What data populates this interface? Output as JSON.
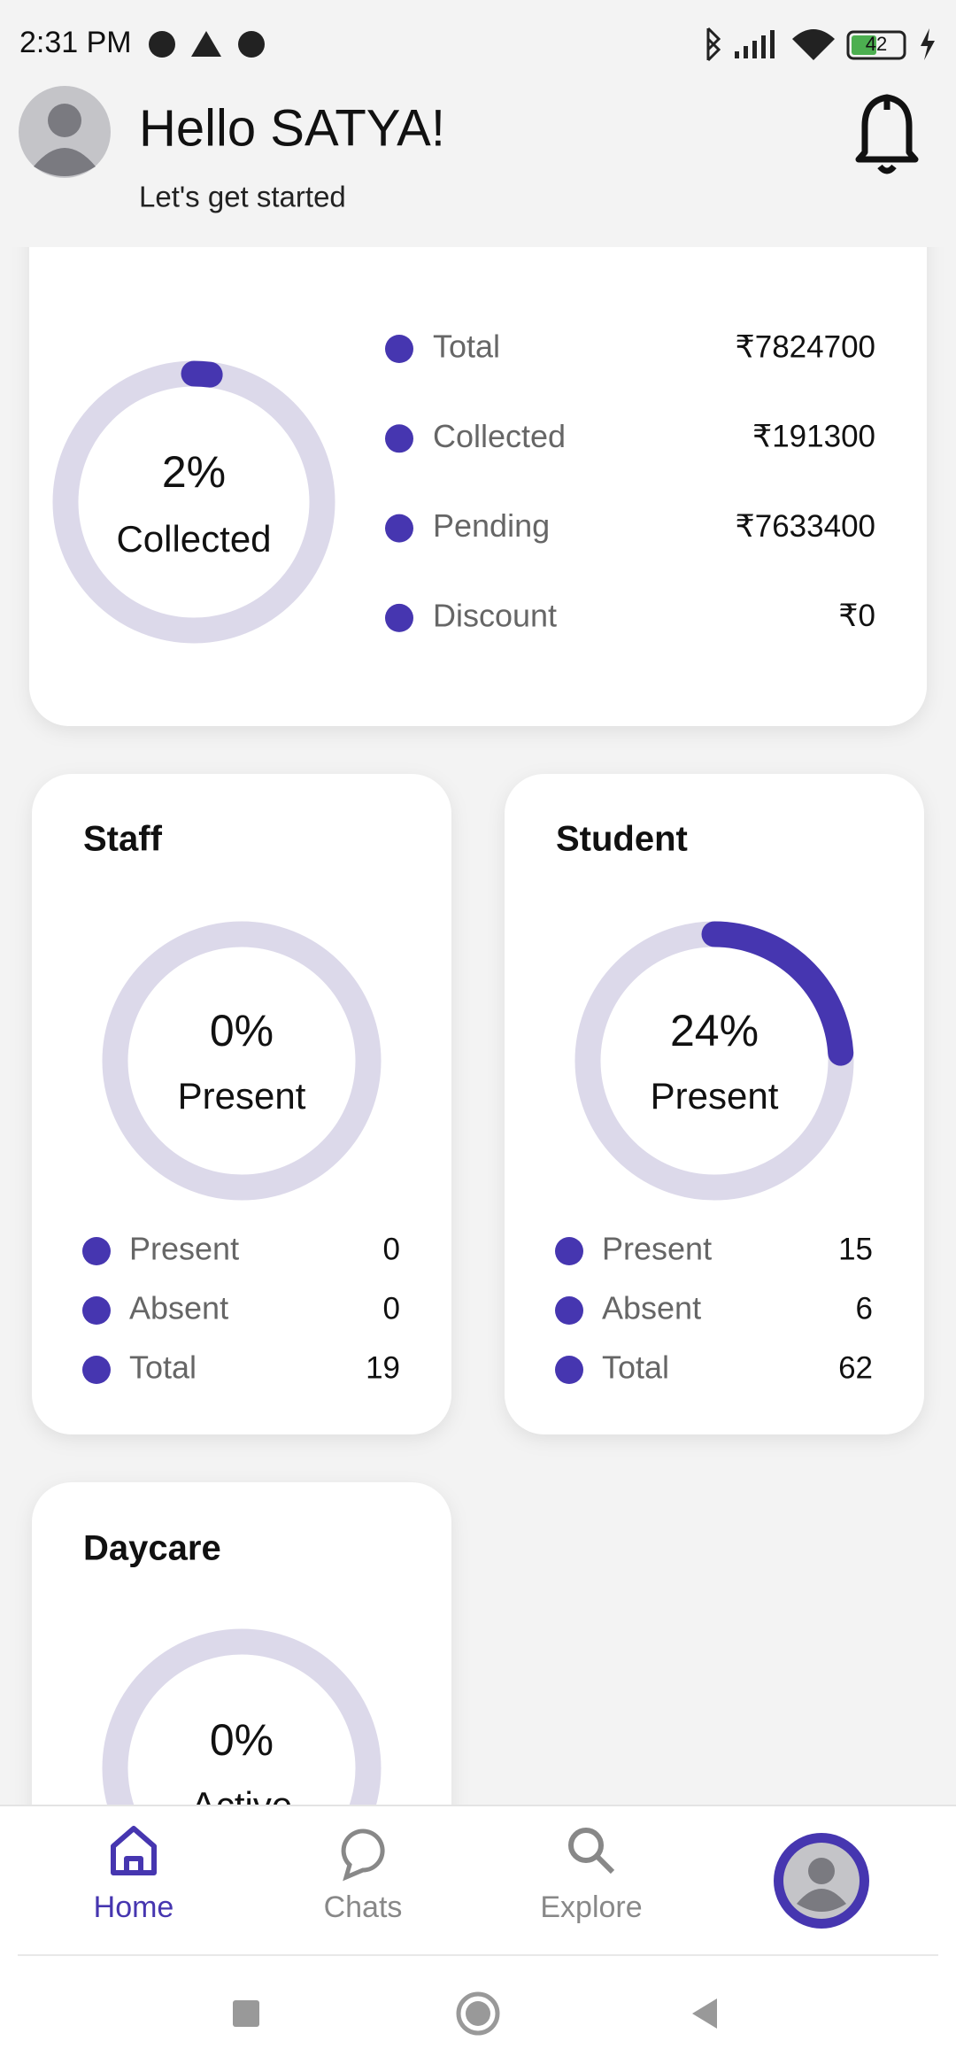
{
  "status_bar": {
    "time": "2:31 PM",
    "battery": "42"
  },
  "header": {
    "title": "Hello SATYA!",
    "subtitle": "Let's get started"
  },
  "fee_card": {
    "ring": {
      "value": 2,
      "value_label": "2%",
      "label": "Collected"
    },
    "rows": [
      {
        "label": "Total",
        "amount": "₹7824700"
      },
      {
        "label": "Collected",
        "amount": "₹191300"
      },
      {
        "label": "Pending",
        "amount": "₹7633400"
      },
      {
        "label": "Discount",
        "amount": "₹0"
      }
    ]
  },
  "staff_card": {
    "title": "Staff",
    "ring": {
      "value": 0,
      "value_label": "0%",
      "label": "Present"
    },
    "rows": [
      {
        "label": "Present",
        "count": "0"
      },
      {
        "label": "Absent",
        "count": "0"
      },
      {
        "label": "Total",
        "count": "19"
      }
    ]
  },
  "student_card": {
    "title": "Student",
    "ring": {
      "value": 24,
      "value_label": "24%",
      "label": "Present"
    },
    "rows": [
      {
        "label": "Present",
        "count": "15"
      },
      {
        "label": "Absent",
        "count": "6"
      },
      {
        "label": "Total",
        "count": "62"
      }
    ]
  },
  "daycare_card": {
    "title": "Daycare",
    "ring": {
      "value": 0,
      "value_label": "0%",
      "label": "Active"
    }
  },
  "nav": {
    "items": [
      "Home",
      "Chats",
      "Explore"
    ]
  }
}
